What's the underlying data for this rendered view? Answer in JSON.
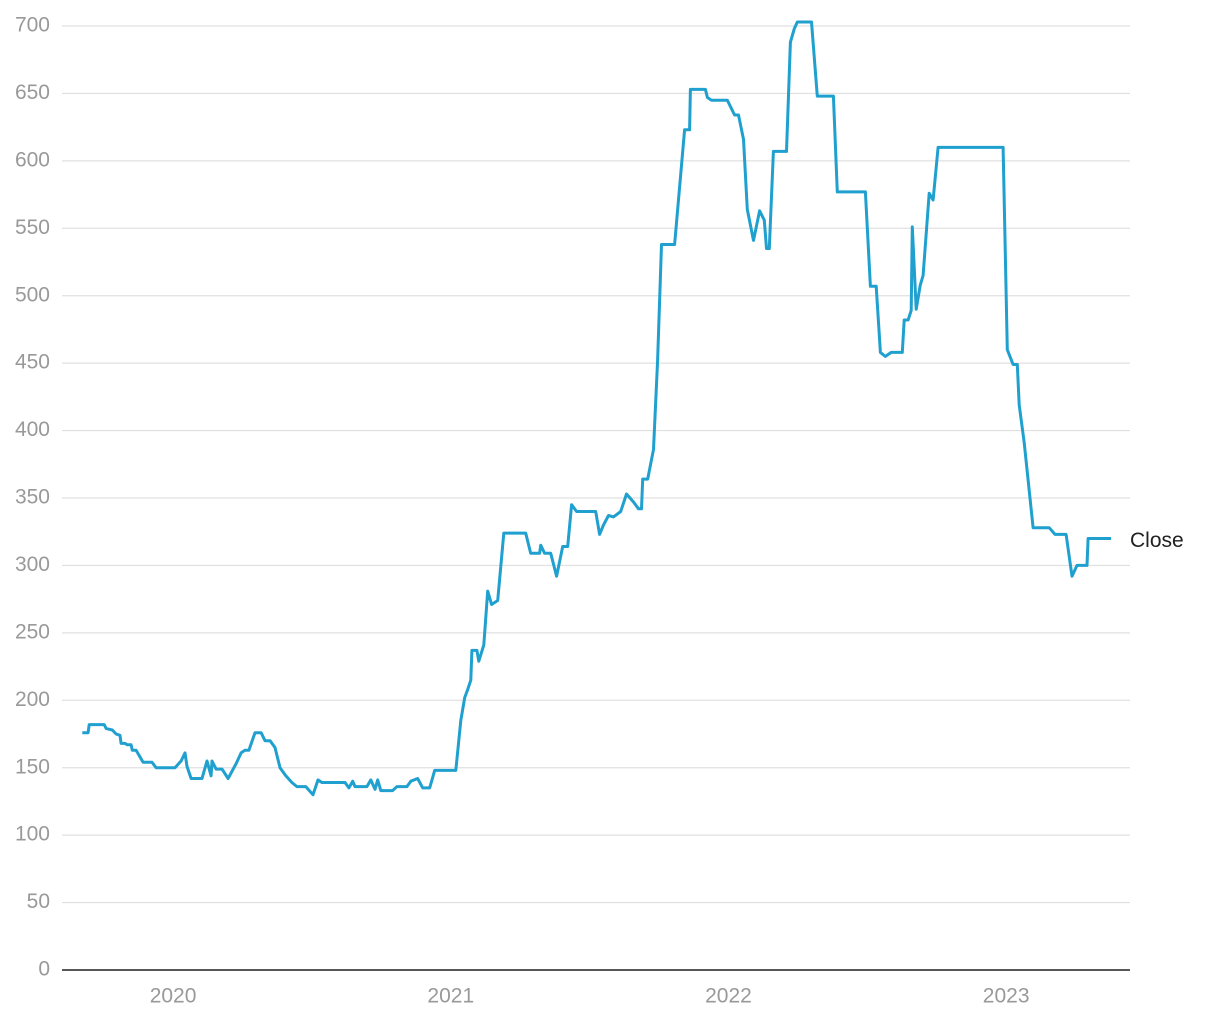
{
  "chart_data": {
    "type": "line",
    "x": [
      2019.673,
      2019.694,
      2019.698,
      2019.752,
      2019.759,
      2019.781,
      2019.795,
      2019.809,
      2019.813,
      2019.827,
      2019.835,
      2019.849,
      2019.853,
      2019.867,
      2019.892,
      2019.924,
      2019.939,
      2020.007,
      2020.029,
      2020.043,
      2020.05,
      2020.065,
      2020.104,
      2020.122,
      2020.137,
      2020.14,
      2020.155,
      2020.176,
      2020.198,
      2020.227,
      2020.245,
      2020.259,
      2020.273,
      2020.295,
      2020.317,
      2020.331,
      2020.349,
      2020.367,
      2020.385,
      2020.406,
      2020.428,
      2020.446,
      2020.478,
      2020.504,
      2020.522,
      2020.536,
      2020.619,
      2020.633,
      2020.647,
      2020.655,
      2020.698,
      2020.712,
      2020.727,
      2020.737,
      2020.748,
      2020.791,
      2020.806,
      2020.842,
      2020.856,
      2020.881,
      2020.899,
      2020.924,
      2020.942,
      2021.018,
      2021.036,
      2021.05,
      2021.061,
      2021.072,
      2021.076,
      2021.094,
      2021.101,
      2021.119,
      2021.133,
      2021.147,
      2021.169,
      2021.191,
      2021.27,
      2021.288,
      2021.32,
      2021.324,
      2021.338,
      2021.36,
      2021.381,
      2021.403,
      2021.421,
      2021.435,
      2021.453,
      2021.522,
      2021.536,
      2021.55,
      2021.568,
      2021.586,
      2021.612,
      2021.633,
      2021.658,
      2021.676,
      2021.687,
      2021.691,
      2021.709,
      2021.73,
      2021.745,
      2021.759,
      2021.806,
      2021.842,
      2021.86,
      2021.863,
      2021.917,
      2021.924,
      2021.939,
      2021.996,
      2022.022,
      2022.036,
      2022.054,
      2022.068,
      2022.09,
      2022.112,
      2022.129,
      2022.137,
      2022.147,
      2022.162,
      2022.209,
      2022.223,
      2022.237,
      2022.248,
      2022.299,
      2022.32,
      2022.378,
      2022.392,
      2022.493,
      2022.511,
      2022.532,
      2022.547,
      2022.565,
      2022.586,
      2022.626,
      2022.633,
      2022.647,
      2022.658,
      2022.662,
      2022.676,
      2022.691,
      2022.701,
      2022.723,
      2022.737,
      2022.755,
      2022.989,
      2023.004,
      2023.025,
      2023.04,
      2023.047,
      2023.065,
      2023.097,
      2023.155,
      2023.176,
      2023.216,
      2023.237,
      2023.255,
      2023.291,
      2023.295,
      2023.378
    ],
    "series": [
      {
        "name": "Close",
        "color": "#1fa0cf",
        "values": [
          176,
          176,
          182,
          182,
          179,
          178,
          175,
          174,
          168,
          168,
          167,
          167,
          163,
          163,
          154,
          154,
          150,
          150,
          155,
          161,
          151,
          142,
          142,
          155,
          144,
          155,
          149,
          149,
          142,
          153,
          161,
          163,
          163,
          176,
          176,
          170,
          170,
          165,
          150,
          144,
          139,
          136,
          136,
          130,
          141,
          139,
          139,
          135,
          140,
          136,
          136,
          141,
          134,
          141,
          133,
          133,
          136,
          136,
          140,
          142,
          135,
          135,
          148,
          148,
          185,
          202,
          208,
          215,
          237,
          237,
          229,
          241,
          281,
          271,
          274,
          324,
          324,
          309,
          309,
          315,
          309,
          309,
          292,
          314,
          314,
          345,
          340,
          340,
          323,
          330,
          337,
          336,
          340,
          353,
          347,
          342,
          342,
          364,
          364,
          386,
          452,
          538,
          538,
          623,
          623,
          653,
          653,
          647,
          645,
          645,
          634,
          634,
          616,
          564,
          541,
          563,
          556,
          535,
          535,
          607,
          607,
          688,
          698,
          703,
          703,
          648,
          648,
          577,
          577,
          507,
          507,
          458,
          455,
          458,
          458,
          482,
          482,
          489,
          551,
          490,
          508,
          515,
          576,
          571,
          610,
          610,
          460,
          449,
          449,
          419,
          391,
          328,
          328,
          323,
          323,
          292,
          300,
          300,
          320,
          320
        ]
      }
    ],
    "xlim": [
      2019.6,
      2023.446
    ],
    "xticks": [
      2020,
      2021,
      2022,
      2023
    ],
    "ylim": [
      0,
      700
    ],
    "yticks": [
      0,
      50,
      100,
      150,
      200,
      250,
      300,
      350,
      400,
      450,
      500,
      550,
      600,
      650,
      700
    ],
    "grid": true
  }
}
